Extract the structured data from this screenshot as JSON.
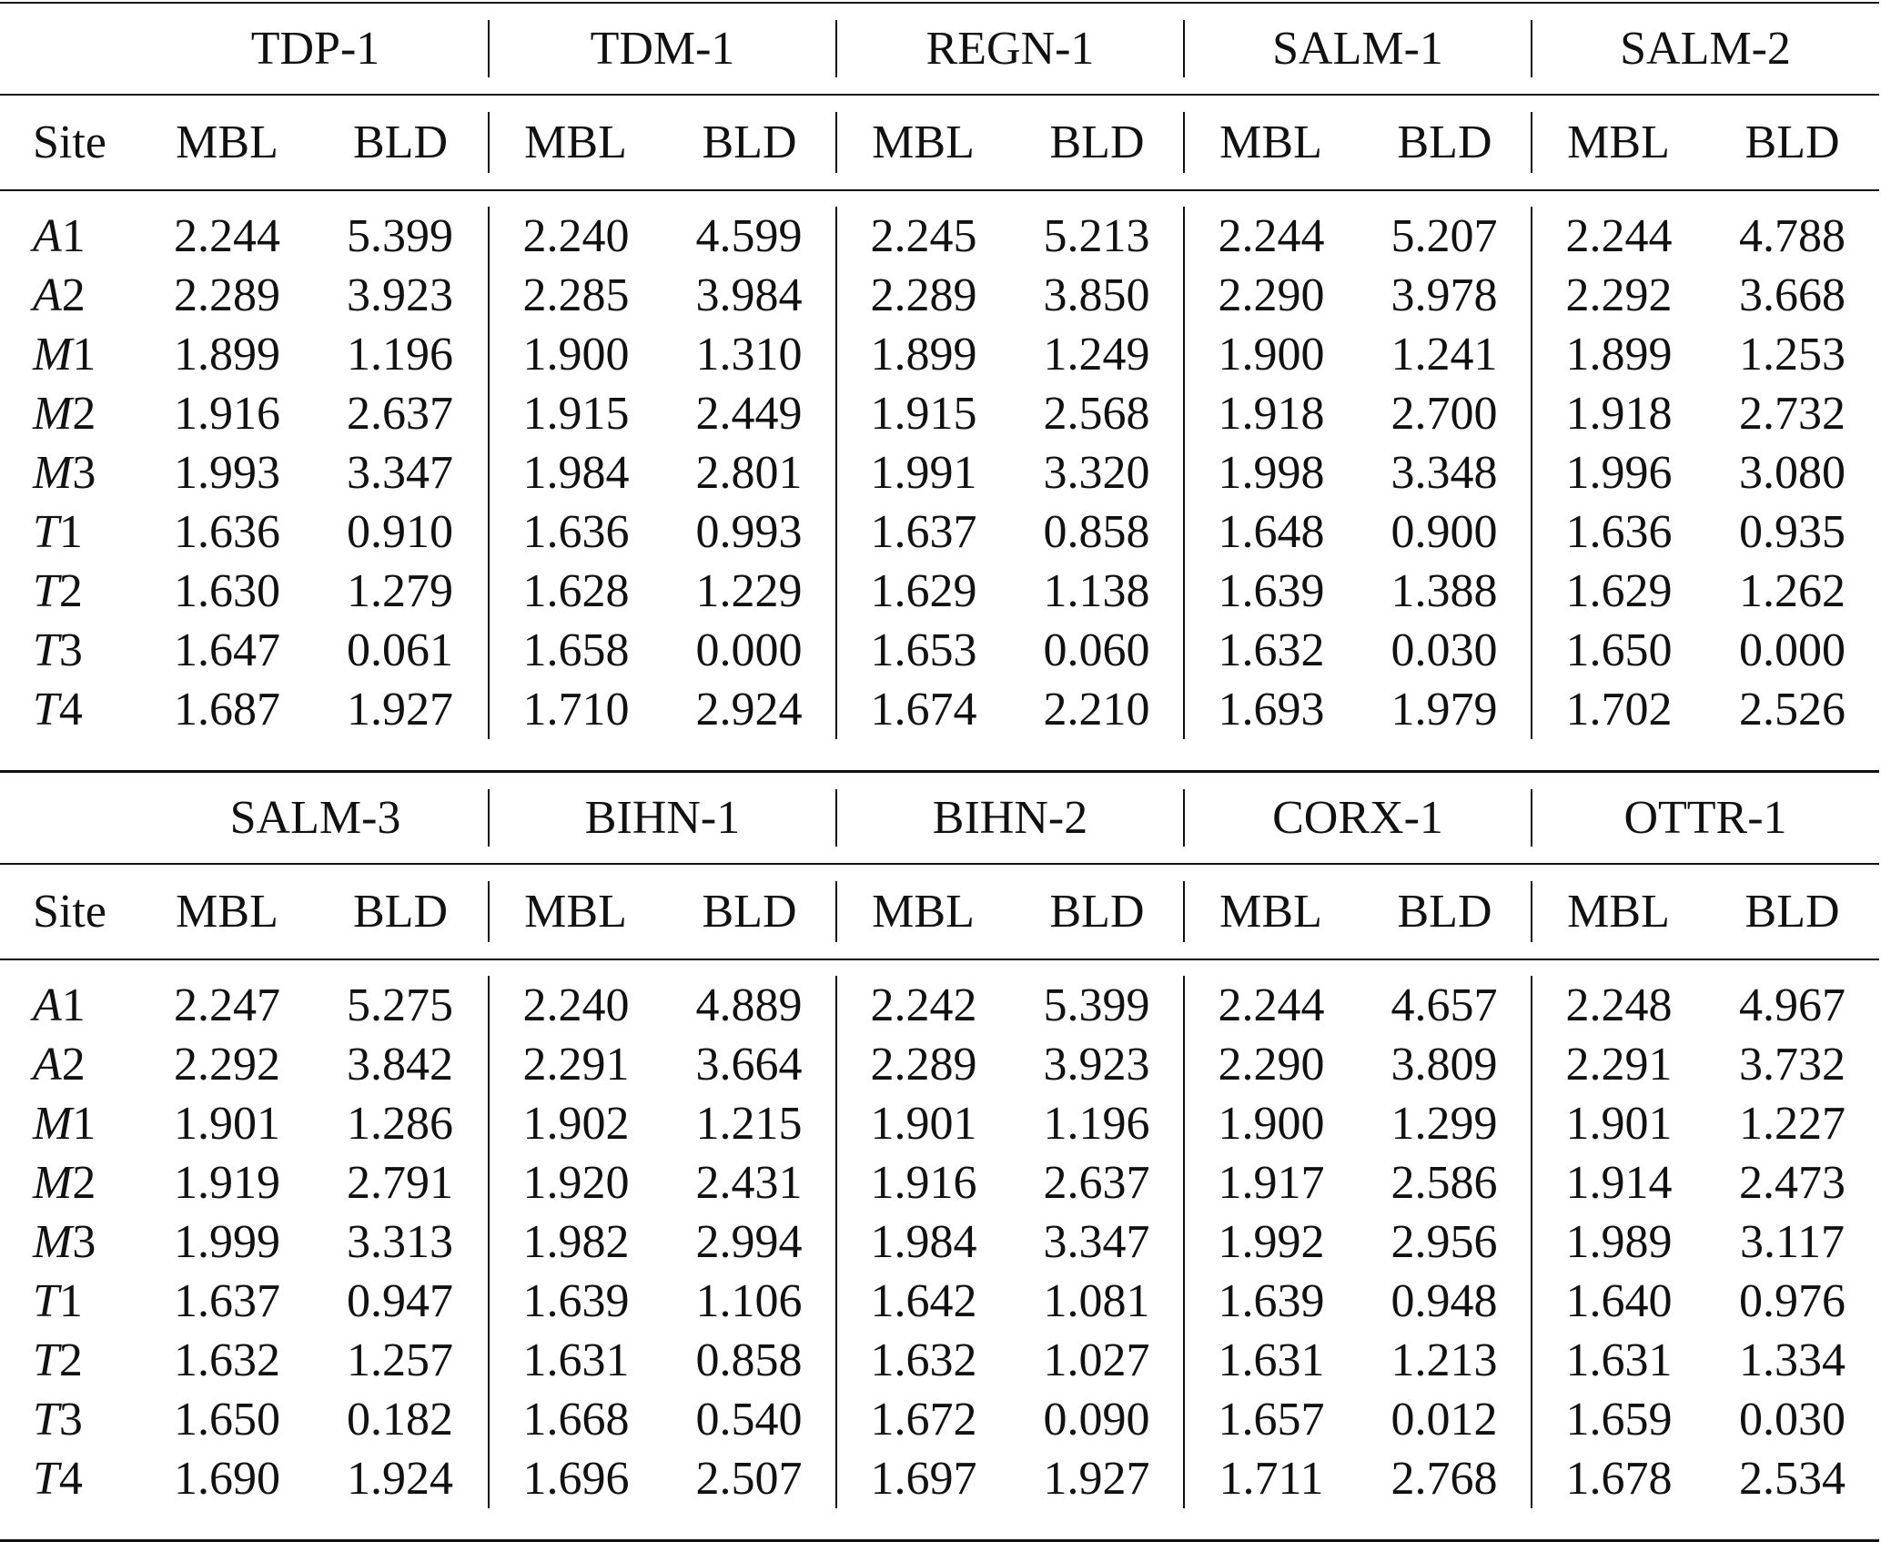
{
  "blocks": [
    {
      "groups": [
        "TDP-1",
        "TDM-1",
        "REGN-1",
        "SALM-1",
        "SALM-2"
      ],
      "columns": [
        "Site",
        "MBL",
        "BLD",
        "MBL",
        "BLD",
        "MBL",
        "BLD",
        "MBL",
        "BLD",
        "MBL",
        "BLD"
      ],
      "rows": [
        [
          "A1",
          "2.244",
          "5.399",
          "2.240",
          "4.599",
          "2.245",
          "5.213",
          "2.244",
          "5.207",
          "2.244",
          "4.788"
        ],
        [
          "A2",
          "2.289",
          "3.923",
          "2.285",
          "3.984",
          "2.289",
          "3.850",
          "2.290",
          "3.978",
          "2.292",
          "3.668"
        ],
        [
          "M1",
          "1.899",
          "1.196",
          "1.900",
          "1.310",
          "1.899",
          "1.249",
          "1.900",
          "1.241",
          "1.899",
          "1.253"
        ],
        [
          "M2",
          "1.916",
          "2.637",
          "1.915",
          "2.449",
          "1.915",
          "2.568",
          "1.918",
          "2.700",
          "1.918",
          "2.732"
        ],
        [
          "M3",
          "1.993",
          "3.347",
          "1.984",
          "2.801",
          "1.991",
          "3.320",
          "1.998",
          "3.348",
          "1.996",
          "3.080"
        ],
        [
          "T1",
          "1.636",
          "0.910",
          "1.636",
          "0.993",
          "1.637",
          "0.858",
          "1.648",
          "0.900",
          "1.636",
          "0.935"
        ],
        [
          "T2",
          "1.630",
          "1.279",
          "1.628",
          "1.229",
          "1.629",
          "1.138",
          "1.639",
          "1.388",
          "1.629",
          "1.262"
        ],
        [
          "T3",
          "1.647",
          "0.061",
          "1.658",
          "0.000",
          "1.653",
          "0.060",
          "1.632",
          "0.030",
          "1.650",
          "0.000"
        ],
        [
          "T4",
          "1.687",
          "1.927",
          "1.710",
          "2.924",
          "1.674",
          "2.210",
          "1.693",
          "1.979",
          "1.702",
          "2.526"
        ]
      ]
    },
    {
      "groups": [
        "SALM-3",
        "BIHN-1",
        "BIHN-2",
        "CORX-1",
        "OTTR-1"
      ],
      "columns": [
        "Site",
        "MBL",
        "BLD",
        "MBL",
        "BLD",
        "MBL",
        "BLD",
        "MBL",
        "BLD",
        "MBL",
        "BLD"
      ],
      "rows": [
        [
          "A1",
          "2.247",
          "5.275",
          "2.240",
          "4.889",
          "2.242",
          "5.399",
          "2.244",
          "4.657",
          "2.248",
          "4.967"
        ],
        [
          "A2",
          "2.292",
          "3.842",
          "2.291",
          "3.664",
          "2.289",
          "3.923",
          "2.290",
          "3.809",
          "2.291",
          "3.732"
        ],
        [
          "M1",
          "1.901",
          "1.286",
          "1.902",
          "1.215",
          "1.901",
          "1.196",
          "1.900",
          "1.299",
          "1.901",
          "1.227"
        ],
        [
          "M2",
          "1.919",
          "2.791",
          "1.920",
          "2.431",
          "1.916",
          "2.637",
          "1.917",
          "2.586",
          "1.914",
          "2.473"
        ],
        [
          "M3",
          "1.999",
          "3.313",
          "1.982",
          "2.994",
          "1.984",
          "3.347",
          "1.992",
          "2.956",
          "1.989",
          "3.117"
        ],
        [
          "T1",
          "1.637",
          "0.947",
          "1.639",
          "1.106",
          "1.642",
          "1.081",
          "1.639",
          "0.948",
          "1.640",
          "0.976"
        ],
        [
          "T2",
          "1.632",
          "1.257",
          "1.631",
          "0.858",
          "1.632",
          "1.027",
          "1.631",
          "1.213",
          "1.631",
          "1.334"
        ],
        [
          "T3",
          "1.650",
          "0.182",
          "1.668",
          "0.540",
          "1.672",
          "0.090",
          "1.657",
          "0.012",
          "1.659",
          "0.030"
        ],
        [
          "T4",
          "1.690",
          "1.924",
          "1.696",
          "2.507",
          "1.697",
          "1.927",
          "1.711",
          "2.768",
          "1.678",
          "2.534"
        ]
      ]
    }
  ]
}
